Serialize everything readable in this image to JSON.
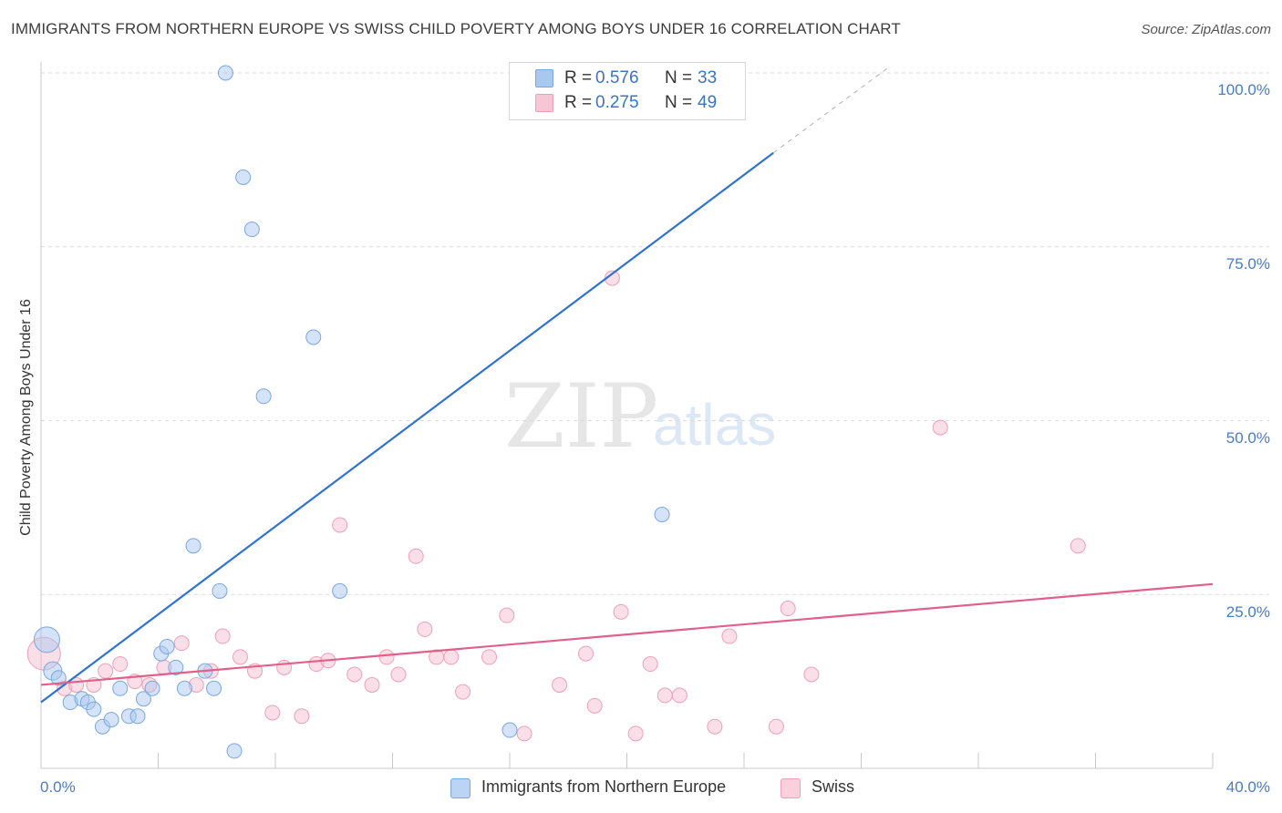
{
  "title": "IMMIGRANTS FROM NORTHERN EUROPE VS SWISS CHILD POVERTY AMONG BOYS UNDER 16 CORRELATION CHART",
  "source": "Source: ZipAtlas.com",
  "watermark": {
    "zip": "ZIP",
    "atlas": "atlas"
  },
  "legend": {
    "rows": [
      {
        "r_label": "R =",
        "r_value": "0.576",
        "n_label": "N =",
        "n_value": "33",
        "color": "#a9c8f0"
      },
      {
        "r_label": "R =",
        "r_value": "0.275",
        "n_label": "N =",
        "n_value": "49",
        "color": "#f7b8cb"
      }
    ]
  },
  "bottom_legend": {
    "series1": "Immigrants from Northern Europe",
    "series2": "Swiss"
  },
  "colors": {
    "blue_fill": "#a9c8f0",
    "blue_line": "#2f72cf",
    "pink_fill": "#f7b8cb",
    "pink_line": "#e0608a",
    "tick_text": "#4a7bc8"
  },
  "chart_data": {
    "type": "scatter",
    "title": "IMMIGRANTS FROM NORTHERN EUROPE VS SWISS CHILD POVERTY AMONG BOYS UNDER 16 CORRELATION CHART",
    "xlabel": "",
    "ylabel": "Child Poverty Among Boys Under 16",
    "xlim": [
      0,
      40
    ],
    "ylim": [
      0,
      100
    ],
    "x_tick_labels": [
      "0.0%",
      "40.0%"
    ],
    "y_tick_labels": [
      "100.0%",
      "75.0%",
      "50.0%",
      "25.0%"
    ],
    "y_ticks": [
      100,
      75,
      50,
      25
    ],
    "grid": true,
    "series": [
      {
        "name": "Immigrants from Northern Europe",
        "color": "#a9c8f0",
        "trend": {
          "x0": 0,
          "y0": 9.5,
          "x1": 25,
          "y1": 88.5,
          "dash_to_x": 29,
          "dash_to_y": 101
        },
        "points": [
          [
            0.2,
            18.5,
            28
          ],
          [
            0.4,
            14,
            20
          ],
          [
            0.6,
            13,
            16
          ],
          [
            1.0,
            9.5,
            16
          ],
          [
            1.4,
            10,
            16
          ],
          [
            1.6,
            9.5,
            16
          ],
          [
            1.8,
            8.5,
            16
          ],
          [
            2.1,
            6,
            16
          ],
          [
            2.4,
            7,
            16
          ],
          [
            2.7,
            11.5,
            16
          ],
          [
            3.0,
            7.5,
            16
          ],
          [
            3.3,
            7.5,
            16
          ],
          [
            3.5,
            10,
            16
          ],
          [
            3.8,
            11.5,
            16
          ],
          [
            4.1,
            16.5,
            16
          ],
          [
            4.3,
            17.5,
            16
          ],
          [
            4.6,
            14.5,
            16
          ],
          [
            4.9,
            11.5,
            16
          ],
          [
            5.2,
            32,
            16
          ],
          [
            5.6,
            14,
            16
          ],
          [
            5.9,
            11.5,
            16
          ],
          [
            6.1,
            25.5,
            16
          ],
          [
            6.3,
            100,
            16
          ],
          [
            6.6,
            2.5,
            16
          ],
          [
            6.9,
            85,
            16
          ],
          [
            7.2,
            77.5,
            16
          ],
          [
            7.6,
            53.5,
            16
          ],
          [
            9.3,
            62,
            16
          ],
          [
            10.2,
            25.5,
            16
          ],
          [
            16.0,
            5.5,
            16
          ],
          [
            18.7,
            100,
            16
          ],
          [
            19.4,
            100,
            16
          ],
          [
            21.2,
            36.5,
            16
          ]
        ]
      },
      {
        "name": "Swiss",
        "color": "#f7b8cb",
        "trend": {
          "x0": 0,
          "y0": 12,
          "x1": 40,
          "y1": 26.5
        },
        "points": [
          [
            0.1,
            16.5,
            36
          ],
          [
            0.8,
            11.5,
            16
          ],
          [
            1.2,
            12,
            16
          ],
          [
            1.8,
            12,
            16
          ],
          [
            2.2,
            14,
            16
          ],
          [
            2.7,
            15,
            16
          ],
          [
            3.2,
            12.5,
            16
          ],
          [
            3.7,
            12,
            16
          ],
          [
            4.2,
            14.5,
            16
          ],
          [
            4.8,
            18,
            16
          ],
          [
            5.3,
            12,
            16
          ],
          [
            5.8,
            14,
            16
          ],
          [
            6.2,
            19,
            16
          ],
          [
            6.8,
            16,
            16
          ],
          [
            7.3,
            14,
            16
          ],
          [
            7.9,
            8,
            16
          ],
          [
            8.3,
            14.5,
            16
          ],
          [
            8.9,
            7.5,
            16
          ],
          [
            9.4,
            15,
            16
          ],
          [
            9.8,
            15.5,
            16
          ],
          [
            10.2,
            35,
            16
          ],
          [
            10.7,
            13.5,
            16
          ],
          [
            11.3,
            12,
            16
          ],
          [
            11.8,
            16,
            16
          ],
          [
            12.2,
            13.5,
            16
          ],
          [
            12.8,
            30.5,
            16
          ],
          [
            13.1,
            20,
            16
          ],
          [
            13.5,
            16,
            16
          ],
          [
            14.0,
            16,
            16
          ],
          [
            14.4,
            11,
            16
          ],
          [
            15.3,
            16,
            16
          ],
          [
            15.9,
            22,
            16
          ],
          [
            16.5,
            5,
            16
          ],
          [
            17.7,
            12,
            16
          ],
          [
            18.6,
            16.5,
            16
          ],
          [
            18.9,
            9,
            16
          ],
          [
            19.5,
            70.5,
            16
          ],
          [
            19.8,
            22.5,
            16
          ],
          [
            20.3,
            5,
            16
          ],
          [
            20.8,
            15,
            16
          ],
          [
            21.3,
            10.5,
            16
          ],
          [
            21.8,
            10.5,
            16
          ],
          [
            23.0,
            6,
            16
          ],
          [
            23.5,
            19,
            16
          ],
          [
            25.1,
            6,
            16
          ],
          [
            25.5,
            23,
            16
          ],
          [
            26.3,
            13.5,
            16
          ],
          [
            30.7,
            49,
            16
          ],
          [
            35.4,
            32,
            16
          ]
        ]
      }
    ]
  }
}
